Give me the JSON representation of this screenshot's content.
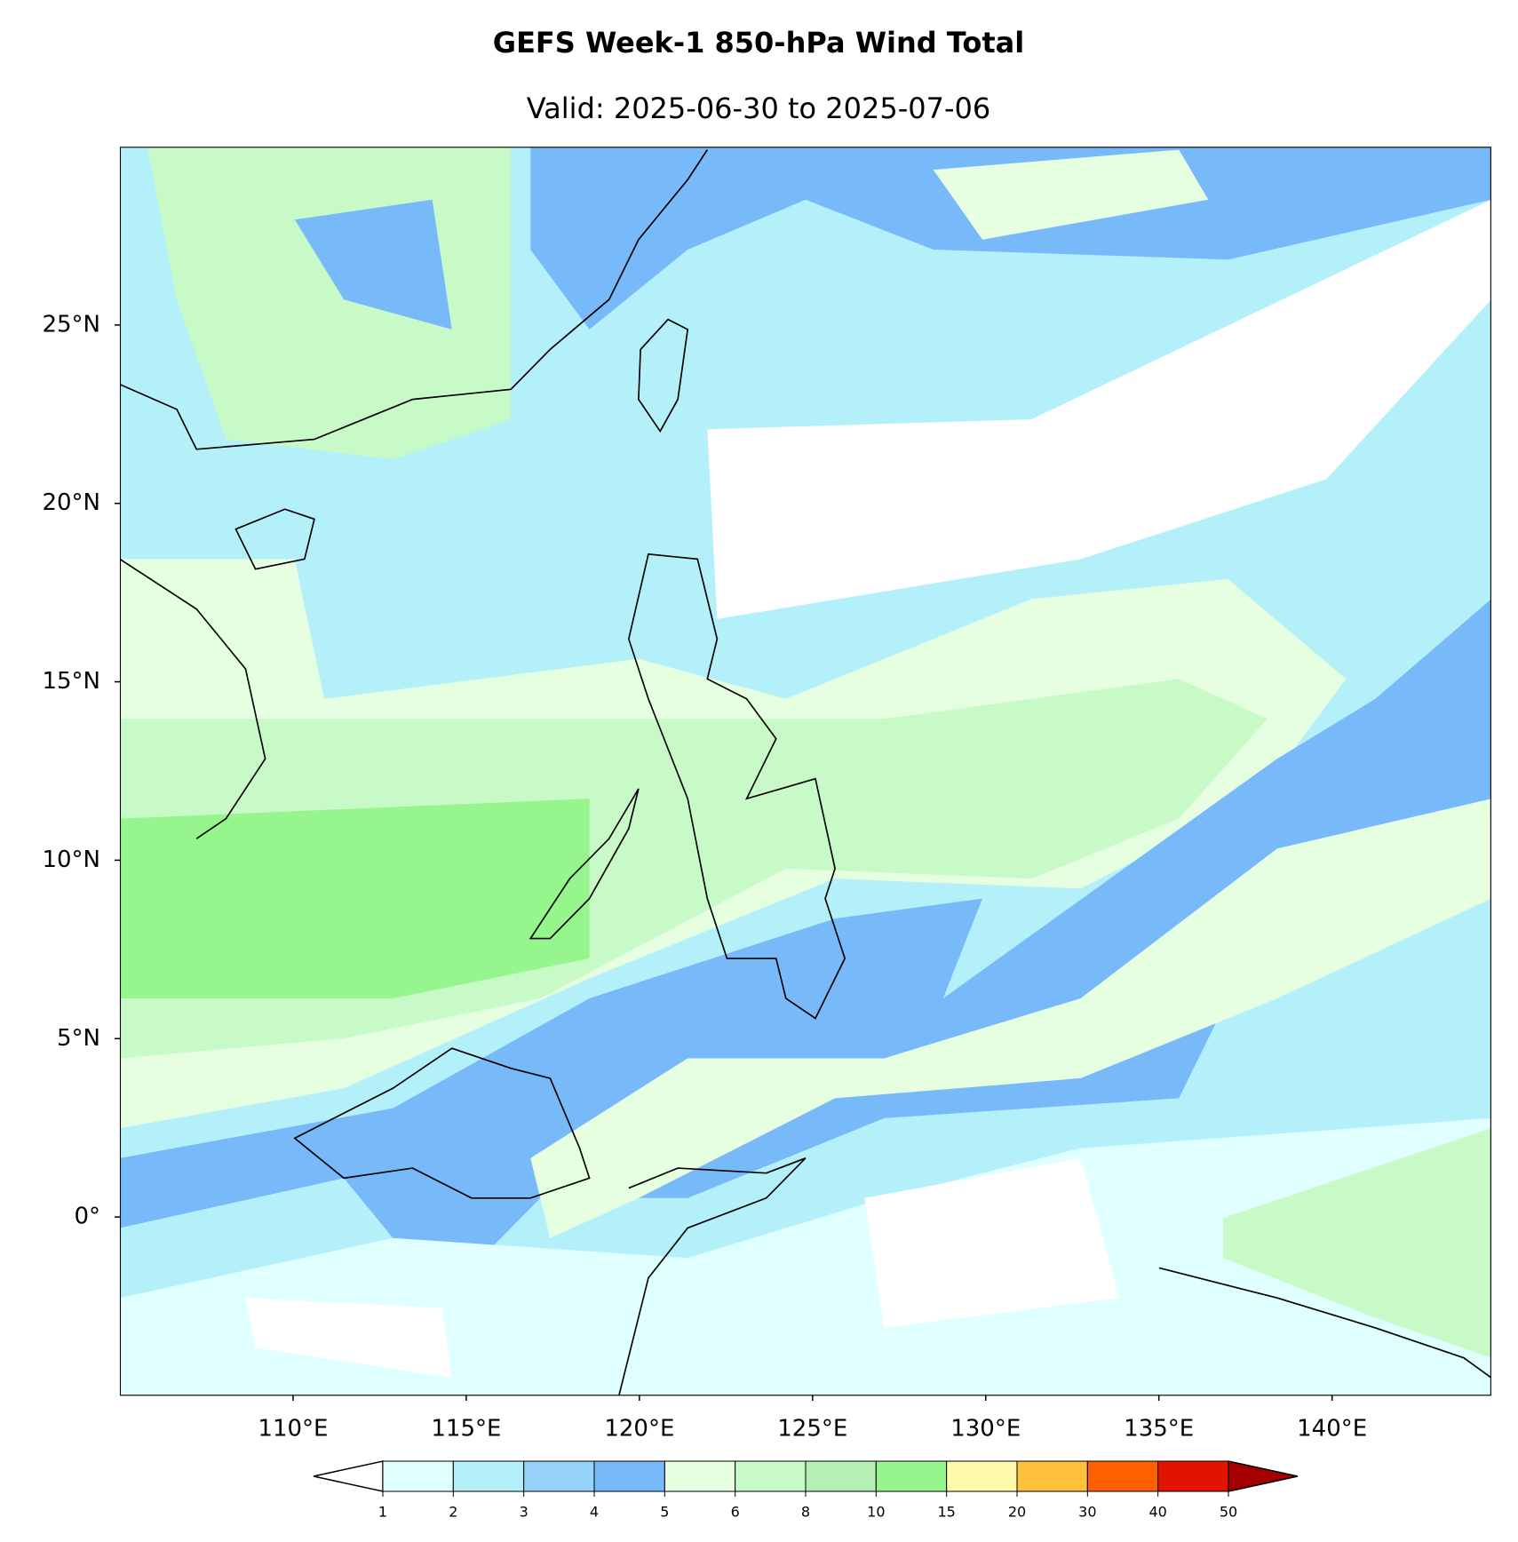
{
  "chart_data": {
    "type": "map",
    "title": "GEFS Week-1 850-hPa Wind Total",
    "subtitle": "Valid: 2025-06-30 to 2025-07-06",
    "xlim": [
      105,
      144.6
    ],
    "ylim": [
      -5,
      30
    ],
    "xticks": [
      {
        "value": 110,
        "label": "110°E"
      },
      {
        "value": 115,
        "label": "115°E"
      },
      {
        "value": 120,
        "label": "120°E"
      },
      {
        "value": 125,
        "label": "125°E"
      },
      {
        "value": 130,
        "label": "130°E"
      },
      {
        "value": 135,
        "label": "135°E"
      },
      {
        "value": 140,
        "label": "140°E"
      }
    ],
    "yticks": [
      {
        "value": 0,
        "label": "0°"
      },
      {
        "value": 5,
        "label": "5°N"
      },
      {
        "value": 10,
        "label": "10°N"
      },
      {
        "value": 15,
        "label": "15°N"
      },
      {
        "value": 20,
        "label": "20°N"
      },
      {
        "value": 25,
        "label": "25°N"
      }
    ],
    "colorbar": {
      "levels": [
        1,
        2,
        3,
        4,
        5,
        6,
        8,
        10,
        15,
        20,
        30,
        40,
        50
      ],
      "colors": [
        "#e0ffff",
        "#b4f0fa",
        "#96d2fa",
        "#78b9fa",
        "#e6ffe1",
        "#c8fac8",
        "#b4f0b4",
        "#96f58c",
        "#fffaaa",
        "#ffc03c",
        "#ff6000",
        "#e11400"
      ],
      "under_color": "#ffffff",
      "over_color": "#a50000"
    }
  }
}
